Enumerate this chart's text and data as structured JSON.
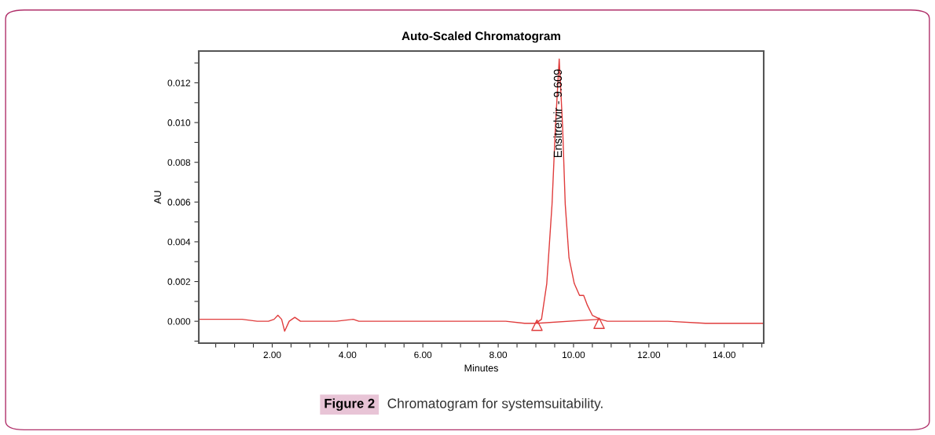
{
  "chart_data": {
    "type": "line",
    "title": "Auto-Scaled Chromatogram",
    "xlabel": "Minutes",
    "ylabel": "AU",
    "xlim": [
      0.05,
      15.05
    ],
    "ylim": [
      -0.0011,
      0.0136
    ],
    "xticks": [
      {
        "value": 0.5,
        "label": null
      },
      {
        "value": 1.0,
        "label": null
      },
      {
        "value": 1.5,
        "label": null
      },
      {
        "value": 2.0,
        "label": "2.00"
      },
      {
        "value": 2.5,
        "label": null
      },
      {
        "value": 3.0,
        "label": null
      },
      {
        "value": 3.5,
        "label": null
      },
      {
        "value": 4.0,
        "label": "4.00"
      },
      {
        "value": 4.5,
        "label": null
      },
      {
        "value": 5.0,
        "label": null
      },
      {
        "value": 5.5,
        "label": null
      },
      {
        "value": 6.0,
        "label": "6.00"
      },
      {
        "value": 6.5,
        "label": null
      },
      {
        "value": 7.0,
        "label": null
      },
      {
        "value": 7.5,
        "label": null
      },
      {
        "value": 8.0,
        "label": "8.00"
      },
      {
        "value": 8.5,
        "label": null
      },
      {
        "value": 9.0,
        "label": null
      },
      {
        "value": 9.5,
        "label": null
      },
      {
        "value": 10.0,
        "label": "10.00"
      },
      {
        "value": 10.5,
        "label": null
      },
      {
        "value": 11.0,
        "label": null
      },
      {
        "value": 11.5,
        "label": null
      },
      {
        "value": 12.0,
        "label": "12.00"
      },
      {
        "value": 12.5,
        "label": null
      },
      {
        "value": 13.0,
        "label": null
      },
      {
        "value": 13.5,
        "label": null
      },
      {
        "value": 14.0,
        "label": "14.00"
      },
      {
        "value": 14.5,
        "label": null
      },
      {
        "value": 15.0,
        "label": null
      }
    ],
    "yticks": [
      {
        "value": -0.001,
        "label": null
      },
      {
        "value": 0.0,
        "label": "0.000"
      },
      {
        "value": 0.001,
        "label": null
      },
      {
        "value": 0.002,
        "label": "0.002"
      },
      {
        "value": 0.003,
        "label": null
      },
      {
        "value": 0.004,
        "label": "0.004"
      },
      {
        "value": 0.005,
        "label": null
      },
      {
        "value": 0.006,
        "label": "0.006"
      },
      {
        "value": 0.007,
        "label": null
      },
      {
        "value": 0.008,
        "label": "0.008"
      },
      {
        "value": 0.009,
        "label": null
      },
      {
        "value": 0.01,
        "label": "0.010"
      },
      {
        "value": 0.011,
        "label": null
      },
      {
        "value": 0.012,
        "label": "0.012"
      },
      {
        "value": 0.013,
        "label": null
      }
    ],
    "grid": false,
    "legend": false,
    "series": [
      {
        "color": "#e03c3c",
        "x": [
          0.05,
          0.3,
          0.8,
          1.2,
          1.6,
          1.9,
          2.05,
          2.15,
          2.25,
          2.33,
          2.45,
          2.6,
          2.75,
          3.2,
          3.7,
          4.15,
          4.3,
          5.0,
          5.9,
          6.5,
          7.5,
          8.2,
          8.7,
          9.0,
          9.15,
          9.29,
          9.43,
          9.52,
          9.62,
          9.71,
          9.78,
          9.88,
          10.02,
          10.16,
          10.27,
          10.37,
          10.5,
          10.71,
          10.9,
          11.5,
          12.5,
          13.5,
          14.3,
          15.05
        ],
        "values": [
          0.0001,
          0.0001,
          0.0001,
          0.0001,
          0.0,
          0.0,
          0.0001,
          0.0003,
          0.0001,
          -0.0005,
          0.0,
          0.0002,
          0.0,
          0.0,
          0.0,
          0.0001,
          0.0,
          0.0,
          0.0,
          0.0,
          0.0,
          0.0,
          -0.0001,
          -0.0001,
          0.0001,
          0.0019,
          0.0059,
          0.0098,
          0.0132,
          0.0098,
          0.0059,
          0.0032,
          0.0019,
          0.0013,
          0.0013,
          0.0008,
          0.0003,
          0.0001,
          0.0,
          0.0,
          0.0,
          -0.0001,
          -0.0001,
          -0.0001
        ]
      },
      {
        "color": "#e03c3c",
        "x": [
          9.03,
          10.68
        ],
        "values": [
          -0.0001,
          0.0001
        ]
      },
      {
        "type": "scatter",
        "color": "#e03c3c",
        "marker": "triangle",
        "x": [
          9.03,
          10.68
        ],
        "values": [
          -0.0002,
          -0.0001
        ]
      }
    ],
    "annotations": [
      {
        "text": "Ensitrelvir - 9.609",
        "x": 9.609,
        "y": 0.0132
      },
      "Figure 2",
      "Chromatogram for systemsuitability."
    ]
  }
}
